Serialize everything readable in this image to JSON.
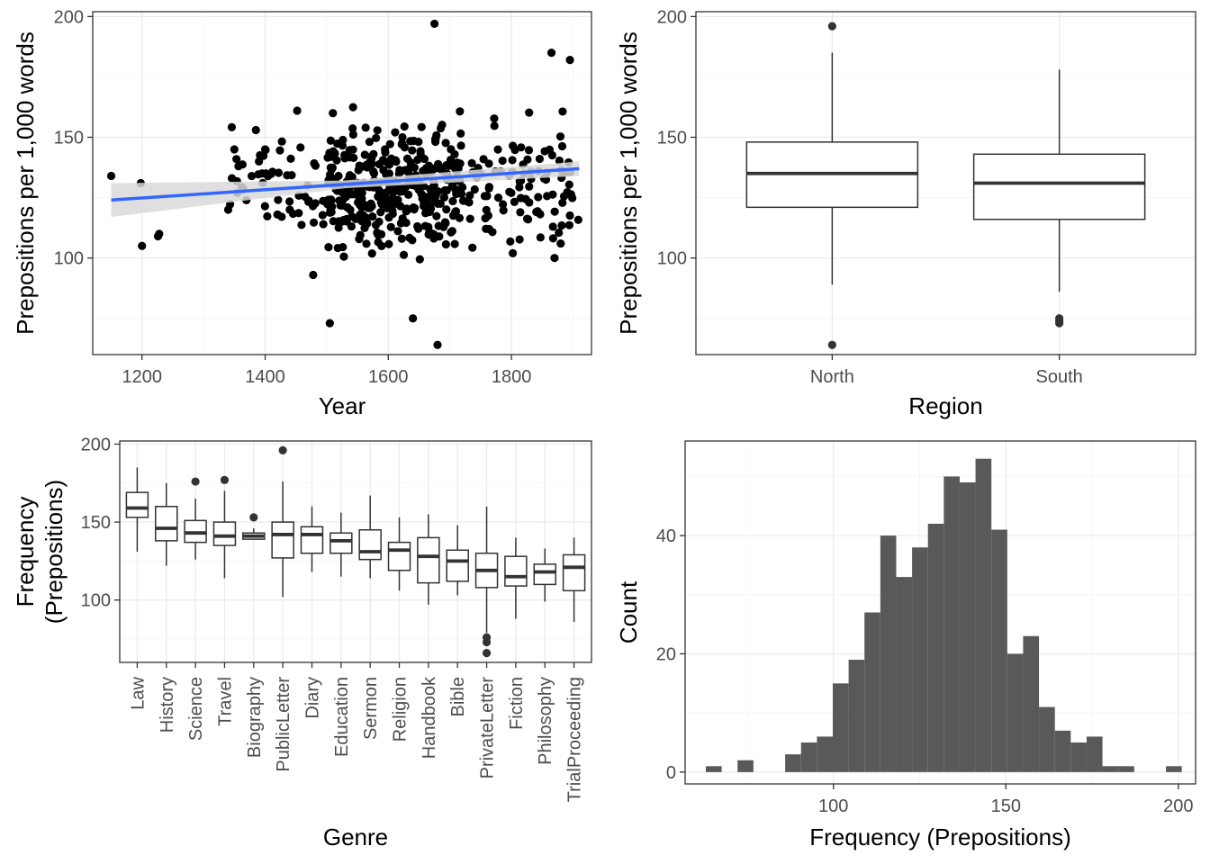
{
  "chart_data": [
    {
      "id": "scatter",
      "type": "scatter",
      "xlabel": "Year",
      "ylabel": "Prepositions per 1,000 words",
      "xlim": [
        1120,
        1930
      ],
      "ylim": [
        60,
        202
      ],
      "xticks": [
        1200,
        1400,
        1600,
        1800
      ],
      "yticks": [
        100,
        150,
        200
      ],
      "grid": true,
      "point_color": "#000000",
      "trend": {
        "color": "#3366ff",
        "ribbon_color": "#d9d9d9",
        "x": [
          1150,
          1910
        ],
        "y": [
          124,
          137
        ],
        "se_low": [
          117,
          134
        ],
        "se_high": [
          131,
          140
        ]
      },
      "points_seed": 7,
      "points_estimated_count": 535
    },
    {
      "id": "region_box",
      "type": "boxplot",
      "xlabel": "Region",
      "ylabel": "Prepositions per 1,000 words",
      "ylim": [
        60,
        202
      ],
      "yticks": [
        100,
        150,
        200
      ],
      "grid": true,
      "categories": [
        "North",
        "South"
      ],
      "boxes": [
        {
          "category": "North",
          "min": 89,
          "q1": 121,
          "median": 135,
          "q3": 148,
          "max": 185,
          "outliers": [
            196,
            64
          ]
        },
        {
          "category": "South",
          "min": 86,
          "q1": 116,
          "median": 131,
          "q3": 143,
          "max": 178,
          "outliers": [
            75,
            74,
            73
          ]
        }
      ]
    },
    {
      "id": "genre_box",
      "type": "boxplot",
      "xlabel": "Genre",
      "ylabel_lines": [
        "Frequency",
        "(Prepositions)"
      ],
      "ylim": [
        60,
        202
      ],
      "yticks": [
        100,
        150,
        200
      ],
      "grid": true,
      "categories": [
        "Law",
        "History",
        "Science",
        "Travel",
        "Biography",
        "PublicLetter",
        "Diary",
        "Education",
        "Sermon",
        "Religion",
        "Handbook",
        "Bible",
        "PrivateLetter",
        "Fiction",
        "Philosophy",
        "TrialProceeding"
      ],
      "boxes": [
        {
          "category": "Law",
          "min": 131,
          "q1": 153,
          "median": 159,
          "q3": 169,
          "max": 185,
          "outliers": []
        },
        {
          "category": "History",
          "min": 122,
          "q1": 138,
          "median": 146,
          "q3": 160,
          "max": 175,
          "outliers": []
        },
        {
          "category": "Science",
          "min": 126,
          "q1": 137,
          "median": 143,
          "q3": 151,
          "max": 165,
          "outliers": [
            176
          ]
        },
        {
          "category": "Travel",
          "min": 114,
          "q1": 135,
          "median": 141,
          "q3": 150,
          "max": 170,
          "outliers": [
            177
          ]
        },
        {
          "category": "Biography",
          "min": 139,
          "q1": 139,
          "median": 141,
          "q3": 143,
          "max": 146,
          "outliers": [
            153
          ]
        },
        {
          "category": "PublicLetter",
          "min": 102,
          "q1": 127,
          "median": 142,
          "q3": 150,
          "max": 176,
          "outliers": [
            196
          ]
        },
        {
          "category": "Diary",
          "min": 118,
          "q1": 130,
          "median": 142,
          "q3": 147,
          "max": 160,
          "outliers": []
        },
        {
          "category": "Education",
          "min": 115,
          "q1": 130,
          "median": 138,
          "q3": 143,
          "max": 156,
          "outliers": []
        },
        {
          "category": "Sermon",
          "min": 114,
          "q1": 126,
          "median": 131,
          "q3": 145,
          "max": 167,
          "outliers": []
        },
        {
          "category": "Religion",
          "min": 106,
          "q1": 119,
          "median": 132,
          "q3": 137,
          "max": 153,
          "outliers": []
        },
        {
          "category": "Handbook",
          "min": 97,
          "q1": 111,
          "median": 128,
          "q3": 140,
          "max": 155,
          "outliers": []
        },
        {
          "category": "Bible",
          "min": 103,
          "q1": 112,
          "median": 125,
          "q3": 132,
          "max": 148,
          "outliers": []
        },
        {
          "category": "PrivateLetter",
          "min": 79,
          "q1": 108,
          "median": 119,
          "q3": 130,
          "max": 160,
          "outliers": [
            76,
            73,
            66
          ]
        },
        {
          "category": "Fiction",
          "min": 88,
          "q1": 109,
          "median": 115,
          "q3": 128,
          "max": 140,
          "outliers": []
        },
        {
          "category": "Philosophy",
          "min": 99,
          "q1": 110,
          "median": 118,
          "q3": 123,
          "max": 133,
          "outliers": []
        },
        {
          "category": "TrialProceeding",
          "min": 86,
          "q1": 106,
          "median": 121,
          "q3": 129,
          "max": 140,
          "outliers": []
        }
      ]
    },
    {
      "id": "histogram",
      "type": "histogram",
      "xlabel": "Frequency (Prepositions)",
      "ylabel": "Count",
      "xlim": [
        57,
        205
      ],
      "ylim": [
        -2,
        56
      ],
      "xticks": [
        100,
        150,
        200
      ],
      "yticks": [
        0,
        20,
        40
      ],
      "grid": true,
      "bar_color": "#595959",
      "bin_width": 4.6,
      "bins": [
        {
          "x0": 63.0,
          "count": 1
        },
        {
          "x0": 67.6,
          "count": 0
        },
        {
          "x0": 72.2,
          "count": 2
        },
        {
          "x0": 76.8,
          "count": 0
        },
        {
          "x0": 81.4,
          "count": 0
        },
        {
          "x0": 86.0,
          "count": 3
        },
        {
          "x0": 90.6,
          "count": 5
        },
        {
          "x0": 95.2,
          "count": 6
        },
        {
          "x0": 99.8,
          "count": 15
        },
        {
          "x0": 104.4,
          "count": 19
        },
        {
          "x0": 109.0,
          "count": 27
        },
        {
          "x0": 113.6,
          "count": 40
        },
        {
          "x0": 118.2,
          "count": 33
        },
        {
          "x0": 122.8,
          "count": 38
        },
        {
          "x0": 127.4,
          "count": 42
        },
        {
          "x0": 132.0,
          "count": 50
        },
        {
          "x0": 136.6,
          "count": 49
        },
        {
          "x0": 141.2,
          "count": 53
        },
        {
          "x0": 145.8,
          "count": 41
        },
        {
          "x0": 150.4,
          "count": 20
        },
        {
          "x0": 155.0,
          "count": 23
        },
        {
          "x0": 159.6,
          "count": 11
        },
        {
          "x0": 164.2,
          "count": 7
        },
        {
          "x0": 168.8,
          "count": 5
        },
        {
          "x0": 173.4,
          "count": 6
        },
        {
          "x0": 178.0,
          "count": 1
        },
        {
          "x0": 182.6,
          "count": 1
        },
        {
          "x0": 187.2,
          "count": 0
        },
        {
          "x0": 191.8,
          "count": 0
        },
        {
          "x0": 196.4,
          "count": 1
        }
      ]
    }
  ]
}
